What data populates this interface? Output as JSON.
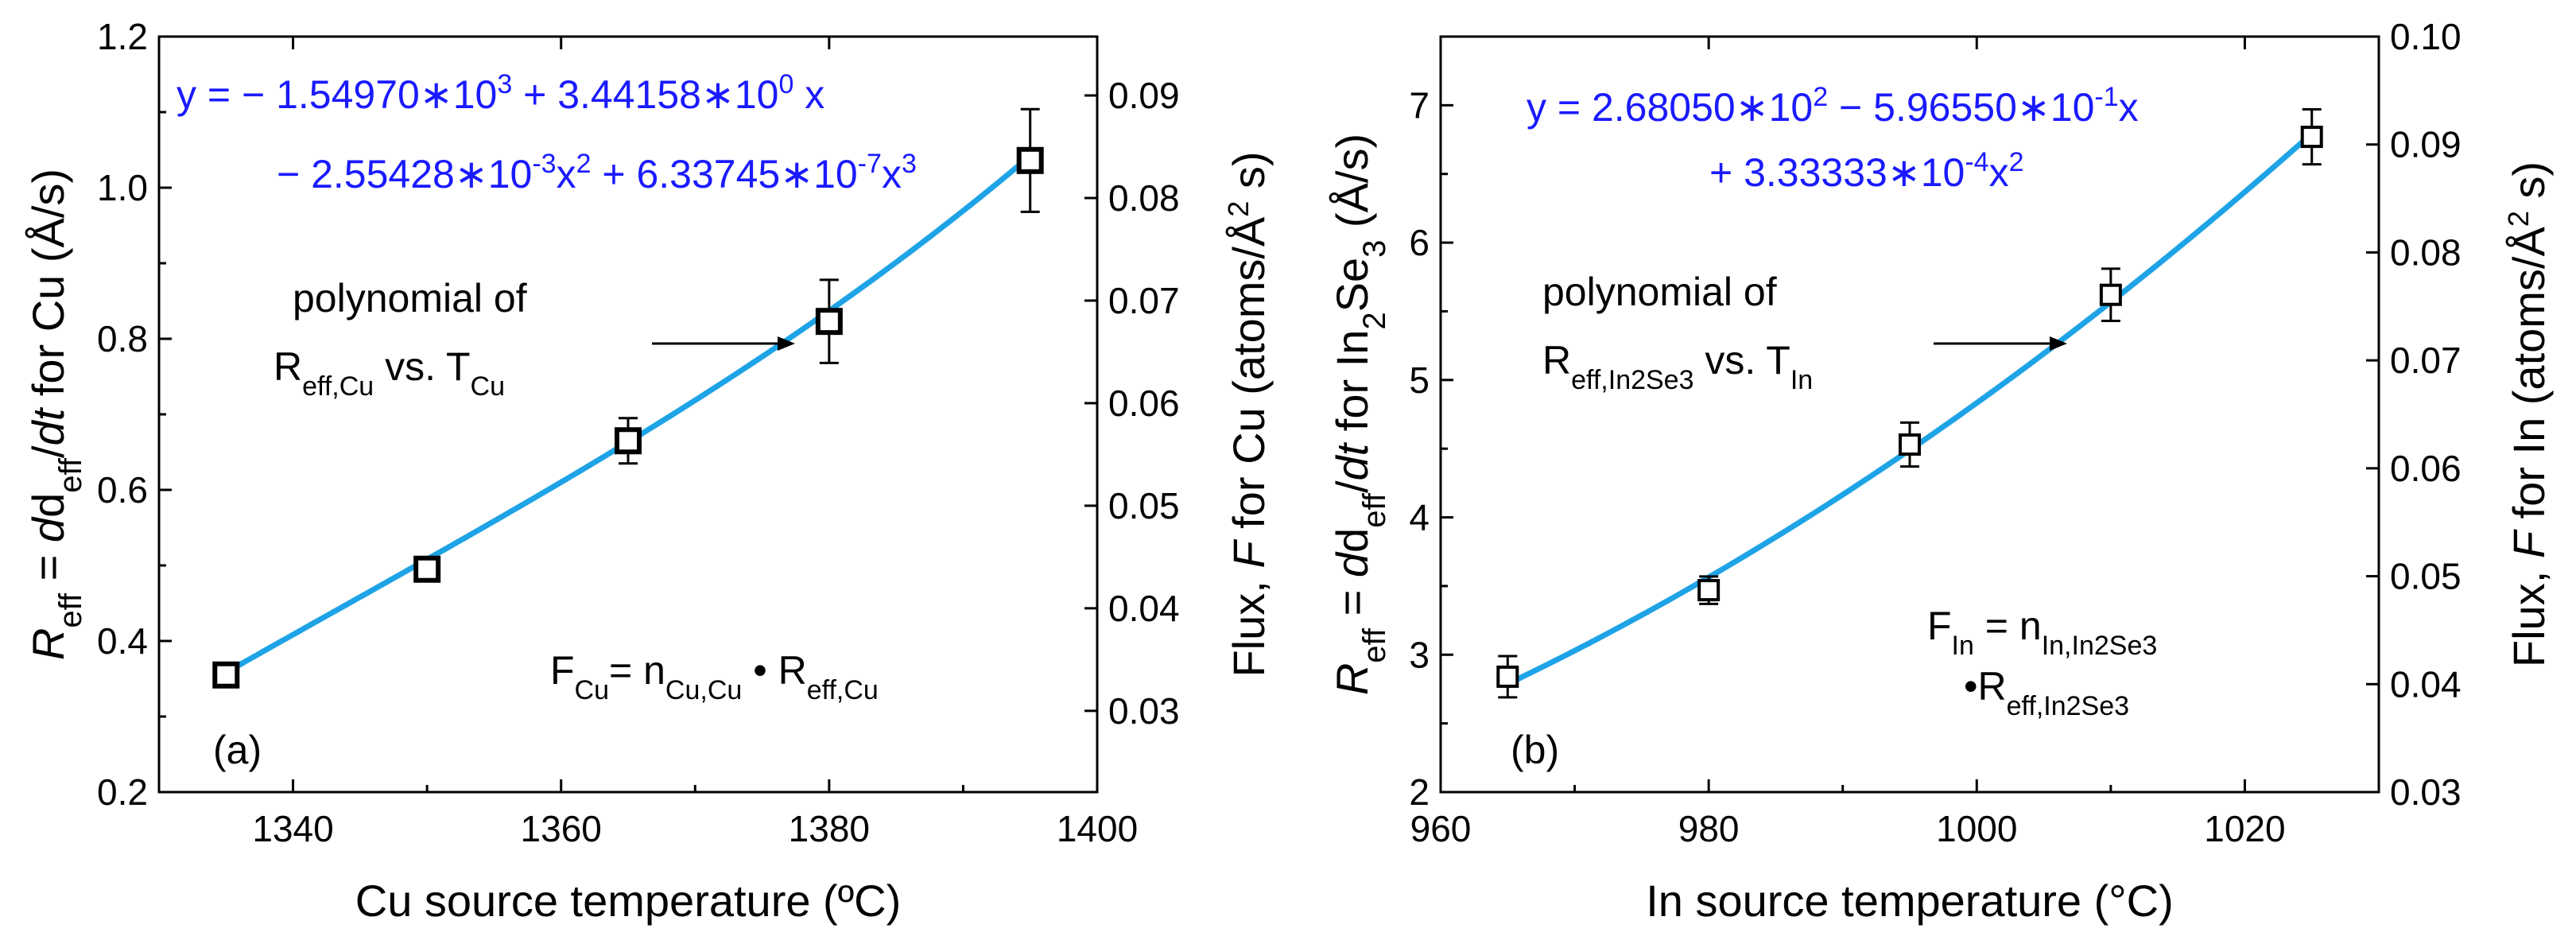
{
  "chart_data": [
    {
      "type": "scatter",
      "panel_label": "(a)",
      "xlabel": "Cu source temperature (ºC)",
      "xlim": [
        1330,
        1400
      ],
      "xticks": [
        1340,
        1360,
        1380,
        1400
      ],
      "ylabel_left": {
        "R": "R",
        "eff": "eff",
        "eq": " = ",
        "d": "d",
        "d2": "d",
        "deff": "eff",
        "slash": "/",
        "dt": "dt",
        "rest": " for Cu (Å/s)"
      },
      "ylim_left": [
        0.2,
        1.2
      ],
      "yticks_left": [
        "0.2",
        "0.4",
        "0.6",
        "0.8",
        "1.0",
        "1.2"
      ],
      "yticks_left_values": [
        0.2,
        0.4,
        0.6,
        0.8,
        1.0,
        1.2
      ],
      "ylabel_right": {
        "pre": "Flux, ",
        "F": "F",
        "post": " for Cu (atoms/Å",
        "sup": "2",
        "tail": " s)"
      },
      "ylim_right": [
        0.02208,
        0.09574
      ],
      "yticks_right": [
        "0.03",
        "0.04",
        "0.05",
        "0.06",
        "0.07",
        "0.08",
        "0.09"
      ],
      "yticks_right_values": [
        0.03,
        0.04,
        0.05,
        0.06,
        0.07,
        0.08,
        0.09
      ],
      "points": [
        {
          "x": 1335,
          "y": 0.355,
          "err": 0.0
        },
        {
          "x": 1350,
          "y": 0.495,
          "err": 0.0
        },
        {
          "x": 1365,
          "y": 0.665,
          "err": 0.03
        },
        {
          "x": 1380,
          "y": 0.823,
          "err": 0.055
        },
        {
          "x": 1395,
          "y": 1.036,
          "err": 0.068
        }
      ],
      "fit_coeffs": [
        -1549.7,
        3.44158,
        -0.00255428,
        6.33745e-07
      ],
      "fit_range": [
        1335,
        1395
      ],
      "equation": {
        "line1": {
          "a": "y = − 1.54970∗10",
          "a_sup": "3",
          "b": " + 3.44158∗10",
          "b_sup": "0",
          "c": " x"
        },
        "line2": {
          "a": "− 2.55428∗10",
          "a_sup": "-3",
          "b": "x",
          "b_sup": "2",
          "c": " + 6.33745∗10",
          "c_sup": "-7",
          "d": "x",
          "d_sup": "3"
        }
      },
      "annotation": {
        "line1": "polynomial of",
        "r": "R",
        "r_sub": "eff,Cu",
        "vs": " vs. T",
        "t_sub": "Cu"
      },
      "flux_formula": {
        "f": "F",
        "f_sub": "Cu",
        "eq": "= n",
        "n_sub": "Cu,Cu",
        "dot": " • ",
        "r": "R",
        "r_sub": "eff,Cu"
      }
    },
    {
      "type": "scatter",
      "panel_label": "(b)",
      "xlabel": "In source temperature (°C)",
      "xlim": [
        960,
        1030
      ],
      "xticks": [
        960,
        980,
        1000,
        1020
      ],
      "ylabel_left": {
        "R": "R",
        "eff": "eff",
        "eq": " = ",
        "d": "d",
        "d2": "d",
        "deff": "eff",
        "slash": "/",
        "dt": "dt",
        "rest": " for In",
        "sub": "2",
        "se": "Se",
        "sub2": "3",
        "tail": " (Å/s)"
      },
      "ylim_left": [
        2,
        7.5
      ],
      "yticks_left": [
        "2",
        "3",
        "4",
        "5",
        "6",
        "7"
      ],
      "yticks_left_values": [
        2,
        3,
        4,
        5,
        6,
        7
      ],
      "ylabel_right": {
        "pre": "Flux, ",
        "F": "F",
        "post": " for In (atoms/Å",
        "sup": "2",
        "tail": " s)"
      },
      "ylim_right": [
        0.03,
        0.1
      ],
      "yticks_right": [
        "0.03",
        "0.04",
        "0.05",
        "0.06",
        "0.07",
        "0.08",
        "0.09",
        "0.10"
      ],
      "yticks_right_values": [
        0.03,
        0.04,
        0.05,
        0.06,
        0.07,
        0.08,
        0.09,
        0.1
      ],
      "points": [
        {
          "x": 965,
          "y": 2.84,
          "err": 0.15
        },
        {
          "x": 980,
          "y": 3.47,
          "err": 0.1
        },
        {
          "x": 995,
          "y": 4.53,
          "err": 0.16
        },
        {
          "x": 1010,
          "y": 5.62,
          "err": 0.19
        },
        {
          "x": 1025,
          "y": 6.77,
          "err": 0.2
        }
      ],
      "fit_coeffs": [
        268.05,
        -0.59655,
        0.000333333
      ],
      "fit_range": [
        965,
        1025
      ],
      "equation": {
        "line1": {
          "a": "y = 2.68050∗10",
          "a_sup": "2",
          "b": " − 5.96550∗10",
          "b_sup": "-1",
          "c": "x"
        },
        "line2": {
          "a": "+ 3.33333∗10",
          "a_sup": "-4",
          "b": "x",
          "b_sup": "2"
        }
      },
      "annotation": {
        "line1": "polynomial of",
        "r": "R",
        "r_sub": "eff,In2Se3",
        "vs": " vs. T",
        "t_sub": "In"
      },
      "flux_formula": {
        "f": "F",
        "f_sub": "In",
        "eq": " = n",
        "n_sub": "In,In2Se3",
        "dot": "•",
        "r": "R",
        "r_sub": "eff,In2Se3"
      }
    }
  ],
  "colors": {
    "fit_line": "#1ea3e6",
    "equation": "#1a1aff",
    "axes": "#000000",
    "marker_fill": "#ffffff"
  }
}
